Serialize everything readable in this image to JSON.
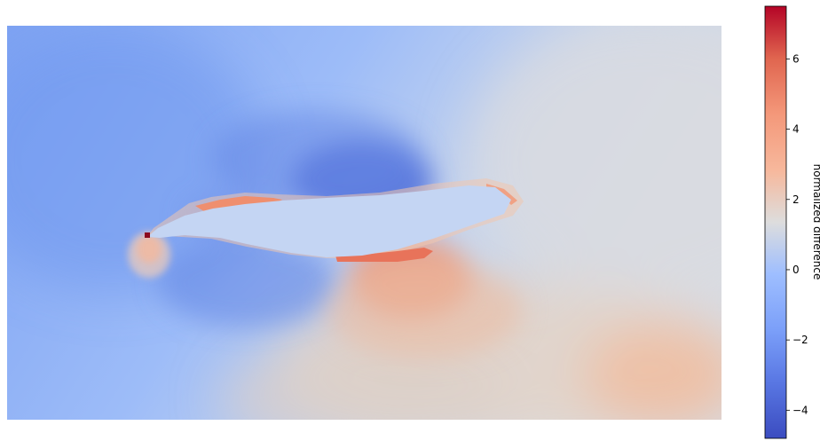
{
  "chart_data": {
    "type": "heatmap",
    "title": "",
    "xlabel": "",
    "ylabel": "",
    "axes_visible": false,
    "colormap": "coolwarm",
    "colors": {
      "low": "#3b4cc0",
      "mid": "#dddddd",
      "high": "#b40426"
    },
    "colorbar": {
      "label": "normalized difference",
      "vmin": -4.8,
      "vmax": 7.5,
      "ticks": [
        {
          "value": -4,
          "label": "−4"
        },
        {
          "value": -2,
          "label": "−2"
        },
        {
          "value": 0,
          "label": "0"
        },
        {
          "value": 2,
          "label": "2"
        },
        {
          "value": 4,
          "label": "4"
        },
        {
          "value": 6,
          "label": "6"
        }
      ]
    },
    "field_features": {
      "background_value": -1.3,
      "airfoil_interior_value": -0.6,
      "min_region_value": -4.5,
      "max_pixel_value": 7.2,
      "lower_right_value": 1.8
    }
  }
}
